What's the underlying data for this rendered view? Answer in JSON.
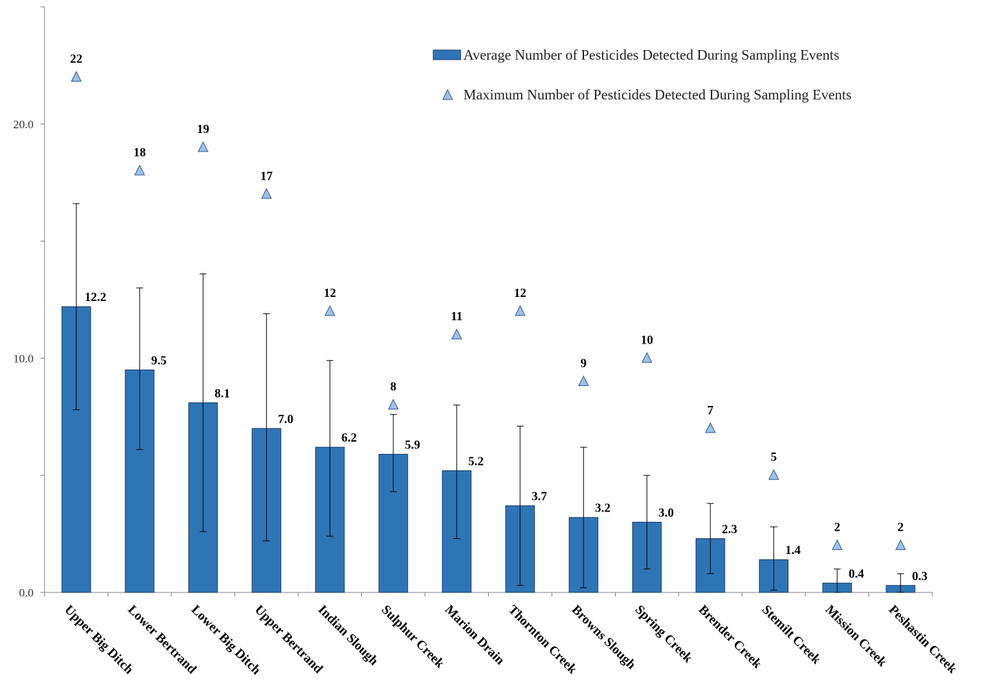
{
  "chart_data": {
    "type": "bar",
    "title": "",
    "xlabel": "",
    "ylabel": "",
    "ylim": [
      0,
      25
    ],
    "yticks": [
      0,
      10,
      20
    ],
    "ytick_labels": [
      "0.0",
      "10.0",
      "20.0"
    ],
    "minor_yticks": [
      5,
      15,
      25
    ],
    "grid": false,
    "legend_position": "top-right",
    "colors": {
      "bar": "#2E75B6",
      "bar_edge": "#1F3864",
      "marker": "#9DC3E6",
      "marker_edge": "#2F5597",
      "axis": "#808080"
    },
    "categories": [
      "Upper Big Ditch",
      "Lower Bertrand",
      "Lower Big Ditch",
      "Upper Bertrand",
      "Indian Slough",
      "Sulphur Creek",
      "Marion Drain",
      "Thornton Creek",
      "Browns Slough",
      "Spring Creek",
      "Brender Creek",
      "Stemilt Creek",
      "Mission Creek",
      "Peshastin Creek"
    ],
    "series": [
      {
        "name": "Average Number of Pesticides Detected During Sampling Events",
        "type": "bar",
        "values": [
          12.2,
          9.5,
          8.1,
          7.0,
          6.2,
          5.9,
          5.2,
          3.7,
          3.2,
          3.0,
          2.3,
          1.4,
          0.4,
          0.3
        ],
        "labels": [
          "12.2",
          "9.5",
          "8.1",
          "7.0",
          "6.2",
          "5.9",
          "5.2",
          "3.7",
          "3.2",
          "3.0",
          "2.3",
          "1.4",
          "0.4",
          "0.3"
        ],
        "error_low": [
          7.8,
          6.1,
          2.6,
          2.2,
          2.4,
          4.3,
          2.3,
          0.3,
          0.2,
          1.0,
          0.8,
          0.1,
          0.0,
          0.0
        ],
        "error_high": [
          16.6,
          13.0,
          13.6,
          11.9,
          9.9,
          7.6,
          8.0,
          7.1,
          6.2,
          5.0,
          3.8,
          2.8,
          1.0,
          0.8
        ]
      },
      {
        "name": "Maximum Number of Pesticides Detected During Sampling Events",
        "type": "marker",
        "values": [
          22,
          18,
          19,
          17,
          12,
          8,
          11,
          12,
          9,
          10,
          7,
          5,
          2,
          2
        ],
        "labels": [
          "22",
          "18",
          "19",
          "17",
          "12",
          "8",
          "11",
          "12",
          "9",
          "10",
          "7",
          "5",
          "2",
          "2"
        ]
      }
    ]
  }
}
